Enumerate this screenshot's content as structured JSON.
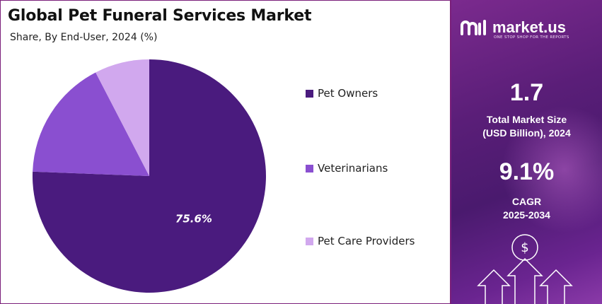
{
  "chart_data": {
    "type": "pie",
    "title": "Global Pet Funeral Services Market",
    "subtitle": "Share, By End-User, 2024 (%)",
    "categories": [
      "Pet Owners",
      "Veterinarians",
      "Pet Care Providers"
    ],
    "values": [
      75.6,
      16.8,
      7.6
    ],
    "colors": [
      "#4a1b7e",
      "#8a4fd0",
      "#d1a8ee"
    ],
    "data_labels": [
      "75.6%",
      "",
      ""
    ],
    "legend_position": "right"
  },
  "legend": [
    {
      "label": "Pet Owners",
      "color": "#4a1b7e"
    },
    {
      "label": "Veterinarians",
      "color": "#8a4fd0"
    },
    {
      "label": "Pet Care Providers",
      "color": "#d1a8ee"
    }
  ],
  "sidebar": {
    "brand": "market.us",
    "tagline": "ONE STOP SHOP FOR THE REPORTS",
    "market_size_value": "1.7",
    "market_size_label_line1": "Total Market Size",
    "market_size_label_line2": "(USD Billion), 2024",
    "cagr_value": "9.1%",
    "cagr_label_line1": "CAGR",
    "cagr_label_line2": "2025-2034",
    "currency_symbol": "$"
  }
}
